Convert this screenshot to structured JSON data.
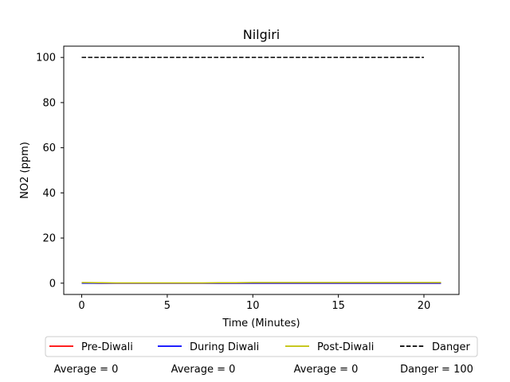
{
  "chart_data": {
    "type": "line",
    "title": "Nilgiri",
    "xlabel": "Time (Minutes)",
    "ylabel": "NO2 (ppm)",
    "xlim": [
      -1.05,
      22.05
    ],
    "ylim": [
      -5,
      105
    ],
    "x_ticks": [
      0,
      5,
      10,
      15,
      20
    ],
    "y_ticks": [
      0,
      20,
      40,
      60,
      80,
      100
    ],
    "grid": false,
    "legend_position": "below",
    "series": [
      {
        "name": "Pre-Diwali",
        "color": "#ff0000",
        "style": "solid",
        "x": [
          0,
          1,
          2,
          3,
          4,
          5,
          6,
          7,
          8,
          9,
          10,
          11,
          12,
          13,
          14,
          15,
          16,
          17,
          18,
          19,
          20,
          21
        ],
        "y": [
          0.1,
          0,
          0,
          0,
          0,
          0,
          0,
          0,
          0,
          0,
          0,
          0,
          0,
          0,
          0,
          0,
          0,
          0,
          0,
          0,
          0,
          0
        ]
      },
      {
        "name": "During Diwali",
        "color": "#0000ff",
        "style": "solid",
        "x": [
          0,
          1,
          2,
          3,
          4,
          5,
          6,
          7,
          8,
          9,
          10,
          11,
          12,
          13,
          14,
          15,
          16,
          17,
          18,
          19,
          20,
          21
        ],
        "y": [
          0,
          0,
          0,
          0,
          0,
          0,
          0,
          0,
          0,
          0,
          0,
          0,
          0,
          0,
          0,
          0,
          0,
          0,
          0,
          0,
          0,
          0
        ]
      },
      {
        "name": "Post-Diwali",
        "color": "#bfbf00",
        "style": "solid",
        "x": [
          0,
          1,
          2,
          3,
          4,
          5,
          6,
          7,
          8,
          9,
          10,
          11,
          12,
          13,
          14,
          15,
          16,
          17,
          18,
          19,
          20,
          21
        ],
        "y": [
          0.3,
          0.2,
          0.1,
          0.1,
          0.1,
          0.1,
          0.1,
          0.1,
          0.2,
          0.2,
          0.3,
          0.3,
          0.3,
          0.3,
          0.3,
          0.3,
          0.3,
          0.3,
          0.3,
          0.3,
          0.3,
          0.3
        ]
      },
      {
        "name": "Danger",
        "color": "#000000",
        "style": "dashed",
        "x": [
          0,
          20
        ],
        "y": [
          100,
          100
        ]
      }
    ],
    "averages": [
      {
        "label": "Average = 0"
      },
      {
        "label": "Average = 0"
      },
      {
        "label": "Average = 0"
      },
      {
        "label": "Danger = 100"
      }
    ]
  }
}
